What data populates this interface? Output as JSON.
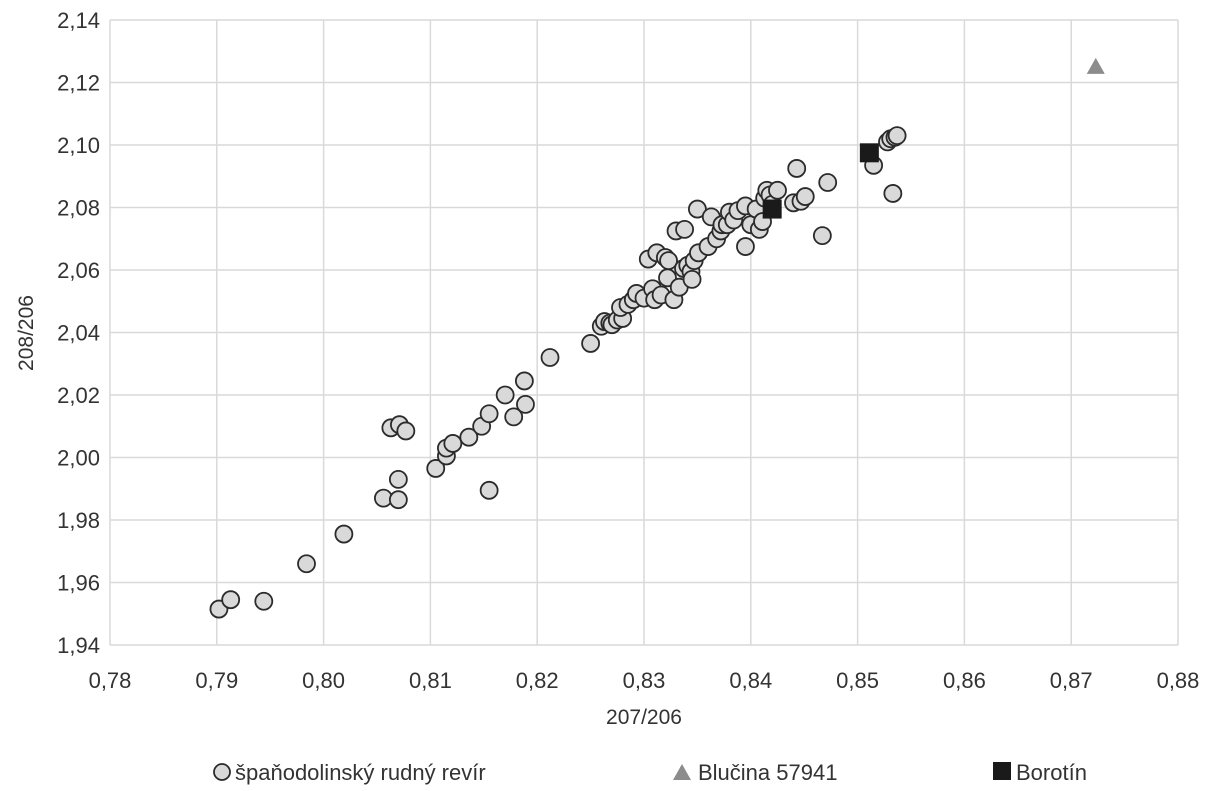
{
  "chart_data": {
    "type": "scatter",
    "title": "",
    "xlabel": "207/206",
    "ylabel": "208/206",
    "xlim": [
      0.78,
      0.88
    ],
    "ylim": [
      1.94,
      2.14
    ],
    "x_ticks": [
      "0,78",
      "0,79",
      "0,80",
      "0,81",
      "0,82",
      "0,83",
      "0,84",
      "0,85",
      "0,86",
      "0,87",
      "0,88"
    ],
    "y_ticks": [
      "1,94",
      "1,96",
      "1,98",
      "2,00",
      "2,02",
      "2,04",
      "2,06",
      "2,08",
      "2,10",
      "2,12",
      "2,14"
    ],
    "grid": true,
    "legend_position": "bottom",
    "series": [
      {
        "name": "špaňodolinský rudný revír",
        "marker": "circle",
        "color": "#d9d9d9",
        "points": [
          [
            0.7902,
            1.9515
          ],
          [
            0.7913,
            1.9545
          ],
          [
            0.7944,
            1.954
          ],
          [
            0.7984,
            1.966
          ],
          [
            0.8019,
            1.9755
          ],
          [
            0.8056,
            1.987
          ],
          [
            0.807,
            1.9865
          ],
          [
            0.807,
            1.993
          ],
          [
            0.8063,
            2.0095
          ],
          [
            0.8071,
            2.0105
          ],
          [
            0.8077,
            2.0085
          ],
          [
            0.8105,
            1.9965
          ],
          [
            0.8115,
            2.0005
          ],
          [
            0.8115,
            2.003
          ],
          [
            0.8121,
            2.0045
          ],
          [
            0.8136,
            2.0065
          ],
          [
            0.8148,
            2.01
          ],
          [
            0.8155,
            2.014
          ],
          [
            0.8155,
            1.9895
          ],
          [
            0.817,
            2.02
          ],
          [
            0.8178,
            2.013
          ],
          [
            0.8189,
            2.017
          ],
          [
            0.8188,
            2.0245
          ],
          [
            0.8212,
            2.032
          ],
          [
            0.825,
            2.0365
          ],
          [
            0.826,
            2.042
          ],
          [
            0.8263,
            2.0435
          ],
          [
            0.8268,
            2.043
          ],
          [
            0.827,
            2.0425
          ],
          [
            0.8275,
            2.044
          ],
          [
            0.828,
            2.0445
          ],
          [
            0.8278,
            2.048
          ],
          [
            0.8285,
            2.049
          ],
          [
            0.829,
            2.0505
          ],
          [
            0.8293,
            2.0525
          ],
          [
            0.83,
            2.051
          ],
          [
            0.8304,
            2.0635
          ],
          [
            0.8308,
            2.054
          ],
          [
            0.831,
            2.0505
          ],
          [
            0.8312,
            2.0655
          ],
          [
            0.8316,
            2.052
          ],
          [
            0.832,
            2.064
          ],
          [
            0.8322,
            2.0575
          ],
          [
            0.8323,
            2.063
          ],
          [
            0.8328,
            2.0505
          ],
          [
            0.833,
            2.0725
          ],
          [
            0.8333,
            2.0545
          ],
          [
            0.8337,
            2.0605
          ],
          [
            0.8338,
            2.073
          ],
          [
            0.8341,
            2.0615
          ],
          [
            0.8344,
            2.0595
          ],
          [
            0.8345,
            2.057
          ],
          [
            0.8347,
            2.063
          ],
          [
            0.835,
            2.0795
          ],
          [
            0.8351,
            2.0655
          ],
          [
            0.836,
            2.0675
          ],
          [
            0.8363,
            2.077
          ],
          [
            0.8368,
            2.07
          ],
          [
            0.8372,
            2.0725
          ],
          [
            0.8373,
            2.0745
          ],
          [
            0.8378,
            2.0745
          ],
          [
            0.838,
            2.0785
          ],
          [
            0.8384,
            2.076
          ],
          [
            0.8388,
            2.079
          ],
          [
            0.8395,
            2.0805
          ],
          [
            0.8395,
            2.0675
          ],
          [
            0.84,
            2.0745
          ],
          [
            0.8405,
            2.0795
          ],
          [
            0.8408,
            2.073
          ],
          [
            0.8411,
            2.0755
          ],
          [
            0.8413,
            2.083
          ],
          [
            0.8415,
            2.0855
          ],
          [
            0.8418,
            2.084
          ],
          [
            0.842,
            2.081
          ],
          [
            0.8425,
            2.0855
          ],
          [
            0.844,
            2.0815
          ],
          [
            0.8443,
            2.0925
          ],
          [
            0.8447,
            2.082
          ],
          [
            0.8451,
            2.0835
          ],
          [
            0.8467,
            2.071
          ],
          [
            0.8472,
            2.088
          ],
          [
            0.8515,
            2.0935
          ],
          [
            0.8528,
            2.101
          ],
          [
            0.8531,
            2.102
          ],
          [
            0.8533,
            2.0845
          ],
          [
            0.8535,
            2.1025
          ],
          [
            0.8537,
            2.103
          ]
        ]
      },
      {
        "name": "Blučina 57941",
        "marker": "triangle",
        "color": "#8c8c8c",
        "points": [
          [
            0.8723,
            2.125
          ]
        ]
      },
      {
        "name": "Borotín",
        "marker": "square",
        "color": "#1a1a1a",
        "points": [
          [
            0.842,
            2.0795
          ],
          [
            0.8511,
            2.0975
          ]
        ]
      }
    ]
  }
}
